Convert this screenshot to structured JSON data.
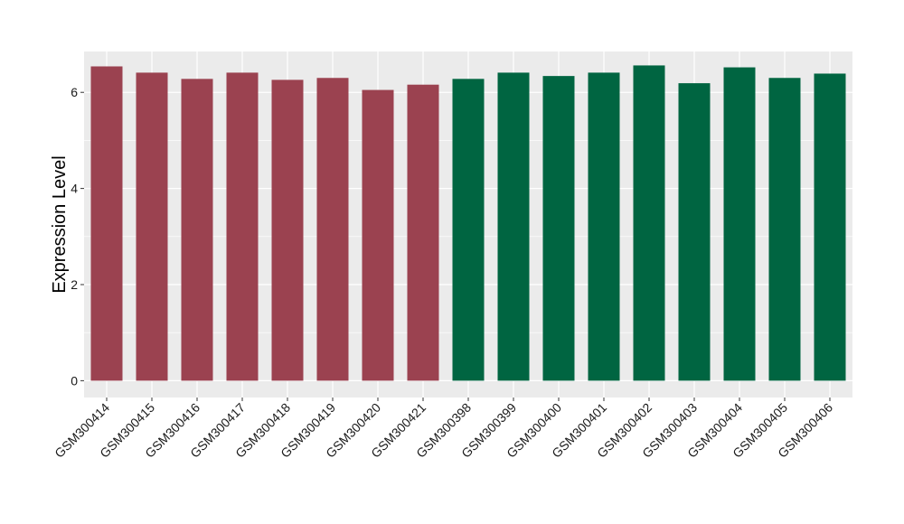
{
  "chart_data": {
    "type": "bar",
    "title": "",
    "xlabel": "",
    "ylabel": "Expression Level",
    "ylim": [
      -0.35,
      6.85
    ],
    "yticks": [
      0,
      2,
      4,
      6
    ],
    "grid": true,
    "legend": "none",
    "categories": [
      "GSM300414",
      "GSM300415",
      "GSM300416",
      "GSM300417",
      "GSM300418",
      "GSM300419",
      "GSM300420",
      "GSM300421",
      "GSM300398",
      "GSM300399",
      "GSM300400",
      "GSM300401",
      "GSM300402",
      "GSM300403",
      "GSM300404",
      "GSM300405",
      "GSM300406"
    ],
    "values": [
      6.54,
      6.41,
      6.28,
      6.41,
      6.26,
      6.3,
      6.05,
      6.16,
      6.28,
      6.41,
      6.34,
      6.41,
      6.56,
      6.19,
      6.52,
      6.3,
      6.39
    ],
    "groups": [
      0,
      0,
      0,
      0,
      0,
      0,
      0,
      0,
      1,
      1,
      1,
      1,
      1,
      1,
      1,
      1,
      1
    ],
    "group_colors": [
      "#9b4250",
      "#006541"
    ],
    "panel_color": "#ebebeb",
    "grid_color": "#ffffff"
  }
}
